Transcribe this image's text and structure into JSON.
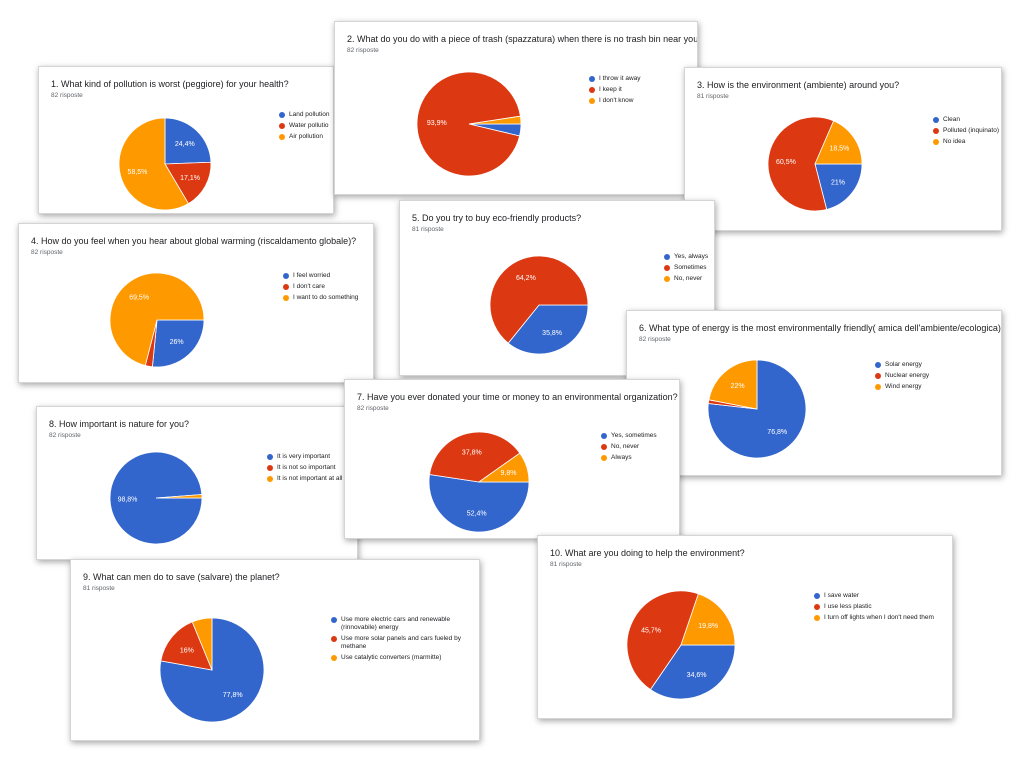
{
  "colors": {
    "blue": "#3366cc",
    "red": "#dc3912",
    "orange": "#ff9900"
  },
  "chart_data": [
    {
      "type": "pie",
      "title": "1. What kind of pollution is worst (peggiore) for your health?",
      "count_label": "82 risposte",
      "categories": [
        "Land pollution",
        "Water pollution",
        "Air pollution"
      ],
      "legend_labels": [
        "Land pollution",
        "Water pollutio",
        "Air pollution"
      ],
      "values": [
        24.4,
        17.1,
        58.5
      ],
      "data_labels": [
        "24,4%",
        "17,1%",
        "58,5%"
      ],
      "legend": "right"
    },
    {
      "type": "pie",
      "title": "2. What do you do with a piece of trash (spazzatura) when there is no trash bin near you?",
      "count_label": "82 risposte",
      "categories": [
        "I throw it away",
        "I keep it",
        "I don't know"
      ],
      "legend_labels": [
        "I throw it away",
        "I keep it",
        "I don't know"
      ],
      "values": [
        3.7,
        93.9,
        2.4
      ],
      "data_labels": [
        "",
        "93,9%",
        ""
      ],
      "legend": "right"
    },
    {
      "type": "pie",
      "title": "3. How is the environment (ambiente) around you?",
      "count_label": "81 risposte",
      "categories": [
        "Clean",
        "Polluted (inquinato)",
        "No idea"
      ],
      "legend_labels": [
        "Clean",
        "Polluted (inquinato)",
        "No idea"
      ],
      "values": [
        21,
        60.5,
        18.5
      ],
      "data_labels": [
        "21%",
        "60,5%",
        "18,5%"
      ],
      "legend": "right"
    },
    {
      "type": "pie",
      "title": "4. How do you feel when you hear about global warming (riscaldamento globale)?",
      "count_label": "82 risposte",
      "categories": [
        "I feel worried",
        "I don't care",
        "I want to do something"
      ],
      "legend_labels": [
        "I feel worried",
        "I don't care",
        "I want to do something"
      ],
      "values": [
        26,
        2.4,
        69.5
      ],
      "data_labels": [
        "26%",
        "",
        "69,5%"
      ],
      "legend": "right"
    },
    {
      "type": "pie",
      "title": "5. Do you try to buy eco-friendly products?",
      "count_label": "81 risposte",
      "categories": [
        "Yes, always",
        "Sometimes",
        "No, never"
      ],
      "legend_labels": [
        "Yes, always",
        "Sometimes",
        "No, never"
      ],
      "values": [
        35.8,
        64.2,
        0
      ],
      "data_labels": [
        "35,8%",
        "64,2%",
        ""
      ],
      "legend": "right"
    },
    {
      "type": "pie",
      "title": "6. What type of energy is the most environmentally friendly( amica dell'ambiente/ecologica)?",
      "count_label": "82 risposte",
      "categories": [
        "Solar energy",
        "Nuclear energy",
        "Wind energy"
      ],
      "legend_labels": [
        "Solar energy",
        "Nuclear energy",
        "Wind energy"
      ],
      "values": [
        76.8,
        1.2,
        22
      ],
      "data_labels": [
        "76,8%",
        "",
        "22%"
      ],
      "legend": "right"
    },
    {
      "type": "pie",
      "title": "7. Have you ever donated your time or money to an environmental organization?",
      "count_label": "82 risposte",
      "categories": [
        "Yes, sometimes",
        "No, never",
        "Always"
      ],
      "legend_labels": [
        "Yes, sometimes",
        "No, never",
        "Always"
      ],
      "values": [
        52.4,
        37.8,
        9.8
      ],
      "data_labels": [
        "52,4%",
        "37,8%",
        "9,8%"
      ],
      "legend": "right"
    },
    {
      "type": "pie",
      "title": "8. How important is nature for you?",
      "count_label": "82 risposte",
      "categories": [
        "It is very important",
        "It is not so important",
        "It is not important at all"
      ],
      "legend_labels": [
        "It is very important",
        "It is not so important",
        "It is not important at all"
      ],
      "values": [
        98.8,
        0,
        1.2
      ],
      "data_labels": [
        "98,8%",
        "",
        ""
      ],
      "legend": "right"
    },
    {
      "type": "pie",
      "title": "9. What can men do to save (salvare) the planet?",
      "count_label": "81 risposte",
      "categories": [
        "Use more electric cars and renewable (rinnovabile) energy",
        "Use more solar panels and cars fueled by methane",
        "Use catalytic converters (marmitte)"
      ],
      "legend_labels": [
        "Use more electric cars and renewable (rinnovabile) energy",
        "Use more solar panels and cars fueled by methane",
        "Use catalytic converters (marmitte)"
      ],
      "values": [
        77.8,
        16,
        6.2
      ],
      "data_labels": [
        "77,8%",
        "16%",
        ""
      ],
      "legend": "right"
    },
    {
      "type": "pie",
      "title": "10. What are you doing to help the environment?",
      "count_label": "81 risposte",
      "categories": [
        "I save water",
        "I use less plastic",
        "I turn off lights when I don't need them"
      ],
      "legend_labels": [
        "I save water",
        "I use less plastic",
        "I turn off lights when I don't need them"
      ],
      "values": [
        34.6,
        45.7,
        19.8
      ],
      "data_labels": [
        "34,6%",
        "45,7%",
        "19,8%"
      ],
      "legend": "right"
    }
  ]
}
